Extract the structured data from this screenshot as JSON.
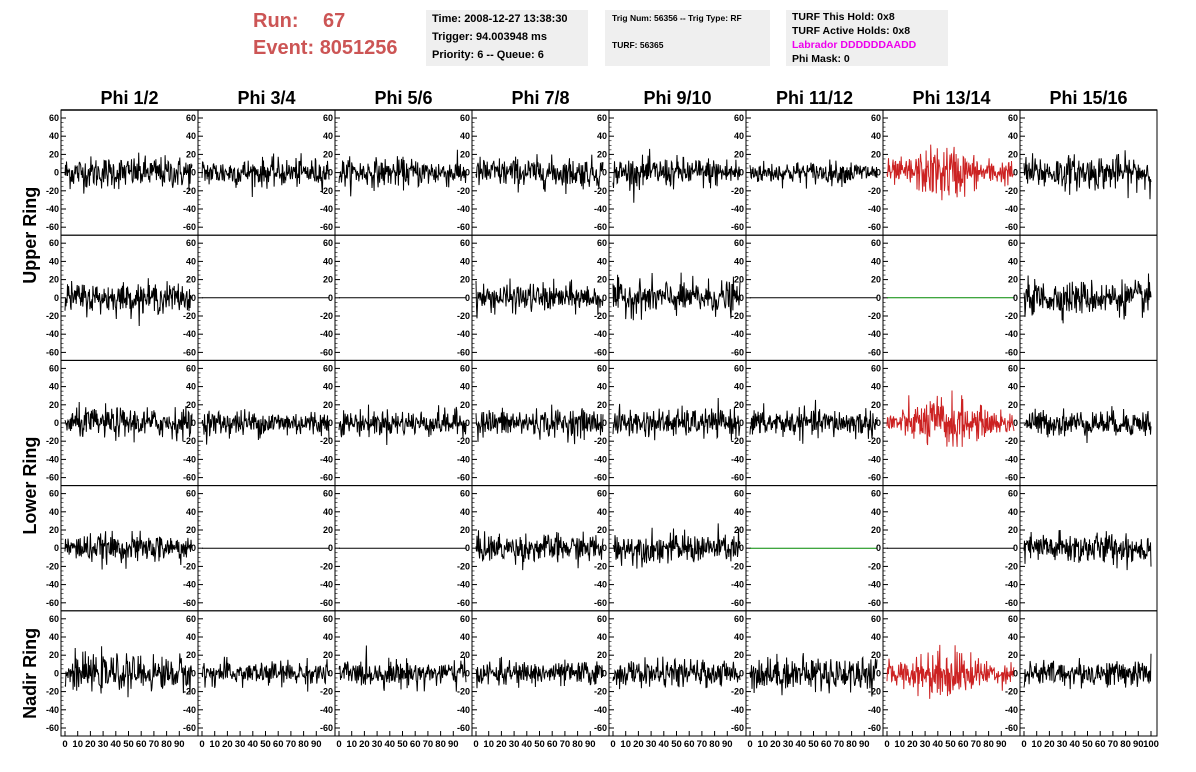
{
  "header": {
    "run_label": "Run:",
    "run_value": "67",
    "event_label": "Event:",
    "event_value": "8051256",
    "colors": {
      "header_text": "#cc5555",
      "magenta_text": "#ee00ee",
      "box_bg": "#efefef"
    }
  },
  "time_box": {
    "time": "Time: 2008-12-27 13:38:30",
    "trigger": "Trigger: 94.003948 ms",
    "priority": "Priority: 6 -- Queue: 6"
  },
  "trig_box": {
    "trig": "Trig Num: 56356 -- Trig Type: RF",
    "turf": "TURF: 56365"
  },
  "turf_box": {
    "this_hold": "TURF This Hold: 0x8",
    "active_holds": "TURF Active Holds: 0x8",
    "labrador": "Labrador DDDDDDAADD",
    "phi_mask": "Phi Mask: 0"
  },
  "chart_data": {
    "type": "line",
    "grid": false,
    "x_range": [
      0,
      100
    ],
    "y_range": [
      -60,
      60
    ],
    "y_ticks": [
      -60,
      -40,
      -20,
      0,
      20,
      40,
      60
    ],
    "x_ticks": [
      0,
      10,
      20,
      30,
      40,
      50,
      60,
      70,
      80,
      90,
      100
    ],
    "column_titles": [
      "Phi 1/2",
      "Phi 3/4",
      "Phi 5/6",
      "Phi 7/8",
      "Phi 9/10",
      "Phi 11/12",
      "Phi 13/14",
      "Phi 15/16"
    ],
    "ring_titles": [
      {
        "label": "Upper Ring",
        "rows": [
          0,
          1
        ]
      },
      {
        "label": "Lower Ring",
        "rows": [
          2,
          3
        ]
      },
      {
        "label": "Nadir Ring",
        "rows": [
          4,
          4
        ]
      }
    ],
    "series_colors": {
      "normal": "#000000",
      "triggered": "#cc2222",
      "flat": "#000000",
      "flat_green": "#008800"
    },
    "panels": [
      [
        {
          "state": "noise",
          "amp": 16
        },
        {
          "state": "noise",
          "amp": 14
        },
        {
          "state": "noise",
          "amp": 14
        },
        {
          "state": "noise",
          "amp": 15
        },
        {
          "state": "noise",
          "amp": 15
        },
        {
          "state": "noise",
          "amp": 11
        },
        {
          "state": "triggered",
          "amp": 22
        },
        {
          "state": "noise",
          "amp": 17
        }
      ],
      [
        {
          "state": "noise",
          "amp": 15
        },
        {
          "state": "flat"
        },
        {
          "state": "flat"
        },
        {
          "state": "noise",
          "amp": 14
        },
        {
          "state": "noise",
          "amp": 17
        },
        {
          "state": "flat"
        },
        {
          "state": "flat_green"
        },
        {
          "state": "noise",
          "amp": 17
        }
      ],
      [
        {
          "state": "noise",
          "amp": 15
        },
        {
          "state": "noise",
          "amp": 13
        },
        {
          "state": "noise",
          "amp": 13
        },
        {
          "state": "noise",
          "amp": 14
        },
        {
          "state": "noise",
          "amp": 14
        },
        {
          "state": "noise",
          "amp": 14
        },
        {
          "state": "triggered",
          "amp": 22
        },
        {
          "state": "noise",
          "amp": 13
        }
      ],
      [
        {
          "state": "noise",
          "amp": 14
        },
        {
          "state": "flat"
        },
        {
          "state": "flat"
        },
        {
          "state": "noise",
          "amp": 14
        },
        {
          "state": "noise",
          "amp": 15
        },
        {
          "state": "flat_green"
        },
        {
          "state": "flat"
        },
        {
          "state": "noise",
          "amp": 16
        }
      ],
      [
        {
          "state": "noise",
          "amp": 17
        },
        {
          "state": "noise",
          "amp": 12
        },
        {
          "state": "noise",
          "amp": 13
        },
        {
          "state": "noise",
          "amp": 12
        },
        {
          "state": "noise",
          "amp": 13
        },
        {
          "state": "noise",
          "amp": 17
        },
        {
          "state": "triggered",
          "amp": 21
        },
        {
          "state": "noise",
          "amp": 13
        }
      ]
    ]
  }
}
